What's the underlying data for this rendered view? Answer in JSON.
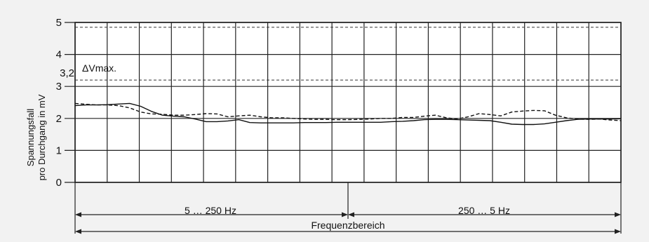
{
  "chart_data": {
    "type": "line",
    "ylabel": "Spannungsfall pro Durchgang in mV",
    "ylabel_lines": [
      "Spannungsfall",
      "pro Durchgang in mV"
    ],
    "ylim": [
      0,
      5
    ],
    "yticks": [
      "0",
      "1",
      "2",
      "3",
      "4",
      "5"
    ],
    "reference_lines": [
      {
        "label": "3,2",
        "value": 3.2,
        "annotation": "ΔVmax.",
        "style": "dashed"
      },
      {
        "label": "",
        "value": 4.85,
        "annotation": "",
        "style": "dashed"
      }
    ],
    "x_segments": [
      {
        "label": "5 … 250 Hz"
      },
      {
        "label": "250 … 5 Hz"
      }
    ],
    "xlabel": "Frequenzbereich",
    "x": [
      0,
      0.02,
      0.04,
      0.06,
      0.08,
      0.1,
      0.12,
      0.14,
      0.16,
      0.18,
      0.2,
      0.22,
      0.24,
      0.26,
      0.28,
      0.3,
      0.32,
      0.34,
      0.36,
      0.38,
      0.4,
      0.42,
      0.44,
      0.46,
      0.48,
      0.5,
      0.52,
      0.54,
      0.56,
      0.58,
      0.6,
      0.62,
      0.64,
      0.66,
      0.68,
      0.7,
      0.72,
      0.74,
      0.76,
      0.78,
      0.8,
      0.82,
      0.84,
      0.86,
      0.88,
      0.9,
      0.92,
      0.94,
      0.96,
      0.98,
      1.0
    ],
    "series": [
      {
        "style": "solid",
        "values": [
          2.4,
          2.42,
          2.42,
          2.43,
          2.45,
          2.47,
          2.38,
          2.22,
          2.1,
          2.07,
          2.05,
          1.98,
          1.9,
          1.9,
          1.92,
          1.96,
          1.87,
          1.86,
          1.86,
          1.86,
          1.86,
          1.87,
          1.87,
          1.87,
          1.88,
          1.88,
          1.88,
          1.88,
          1.88,
          1.9,
          1.91,
          1.93,
          1.96,
          1.97,
          1.97,
          1.96,
          1.95,
          1.94,
          1.93,
          1.88,
          1.82,
          1.81,
          1.81,
          1.83,
          1.88,
          1.93,
          1.97,
          1.98,
          1.98,
          1.98,
          1.99
        ]
      },
      {
        "style": "dashed",
        "values": [
          2.47,
          2.44,
          2.42,
          2.42,
          2.4,
          2.33,
          2.2,
          2.14,
          2.13,
          2.1,
          2.1,
          2.12,
          2.15,
          2.14,
          2.05,
          2.08,
          2.1,
          2.05,
          2.02,
          2.02,
          2.0,
          1.98,
          1.97,
          1.97,
          1.96,
          1.96,
          1.97,
          1.98,
          2.0,
          2.0,
          2.03,
          2.03,
          2.07,
          2.1,
          2.02,
          1.98,
          2.05,
          2.15,
          2.12,
          2.08,
          2.2,
          2.23,
          2.25,
          2.24,
          2.1,
          2.02,
          1.98,
          1.97,
          1.98,
          1.95,
          1.93
        ]
      }
    ]
  }
}
